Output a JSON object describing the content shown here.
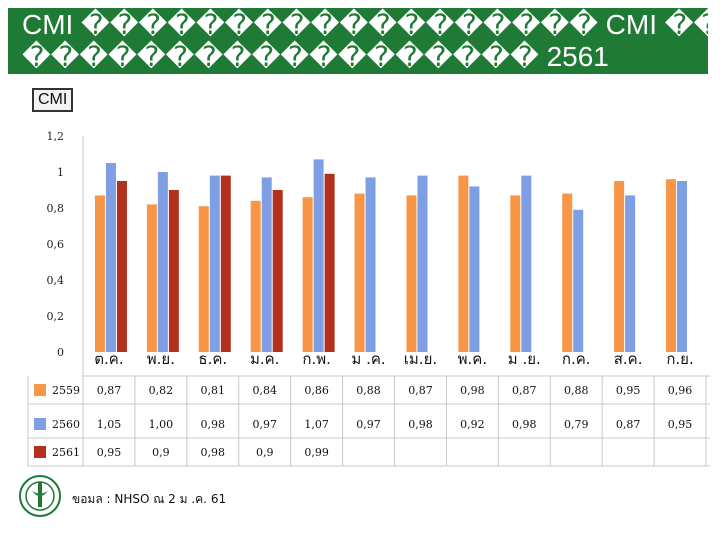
{
  "title": {
    "line1": "CMI ������������������ CMI ��",
    "line2": "������������������ 2561"
  },
  "chart_label": "CMI",
  "source_text": "ขอมล : NHSO ณ 2 ม .ค. 61",
  "colors": {
    "2559": "#f79646",
    "2560": "#7f9fe5",
    "2561": "#b3301e",
    "header": "#1e7a35"
  },
  "icons": {
    "logo": "moph-logo-icon"
  },
  "chart_data": {
    "type": "bar",
    "categories": [
      "ต.ค.",
      "พ.ย.",
      "ธ.ค.",
      "ม.ค.",
      "ก.พ.",
      "ม .ค.",
      "เม.ย.",
      "พ.ค.",
      "ม .ย.",
      "ก.ค.",
      "ส.ค.",
      "ก.ย."
    ],
    "series": [
      {
        "name": "2559",
        "values": [
          0.87,
          0.82,
          0.81,
          0.84,
          0.86,
          0.88,
          0.87,
          0.98,
          0.87,
          0.88,
          0.95,
          0.96
        ],
        "labels": [
          "0,87",
          "0,82",
          "0,81",
          "0,84",
          "0,86",
          "0,88",
          "0,87",
          "0,98",
          "0,87",
          "0,88",
          "0,95",
          "0,96"
        ]
      },
      {
        "name": "2560",
        "values": [
          1.05,
          1.0,
          0.98,
          0.97,
          1.07,
          0.97,
          0.98,
          0.92,
          0.98,
          0.79,
          0.87,
          0.95
        ],
        "labels": [
          "1,05",
          "1,00",
          "0,98",
          "0,97",
          "1,07",
          "0,97",
          "0,98",
          "0,92",
          "0,98",
          "0,79",
          "0,87",
          "0,95"
        ]
      },
      {
        "name": "2561",
        "values": [
          0.95,
          0.9,
          0.98,
          0.9,
          0.99,
          null,
          null,
          null,
          null,
          null,
          null,
          null
        ],
        "labels": [
          "0,95",
          "0,9",
          "0,98",
          "0,9",
          "0,99",
          "",
          "",
          "",
          "",
          "",
          "",
          ""
        ]
      }
    ],
    "yticks": [
      "1,2",
      "1",
      "0,8",
      "0,6",
      "0,4",
      "0,2",
      "0"
    ],
    "ylim": [
      0,
      1.2
    ],
    "grid": false,
    "legend": "table-below"
  }
}
